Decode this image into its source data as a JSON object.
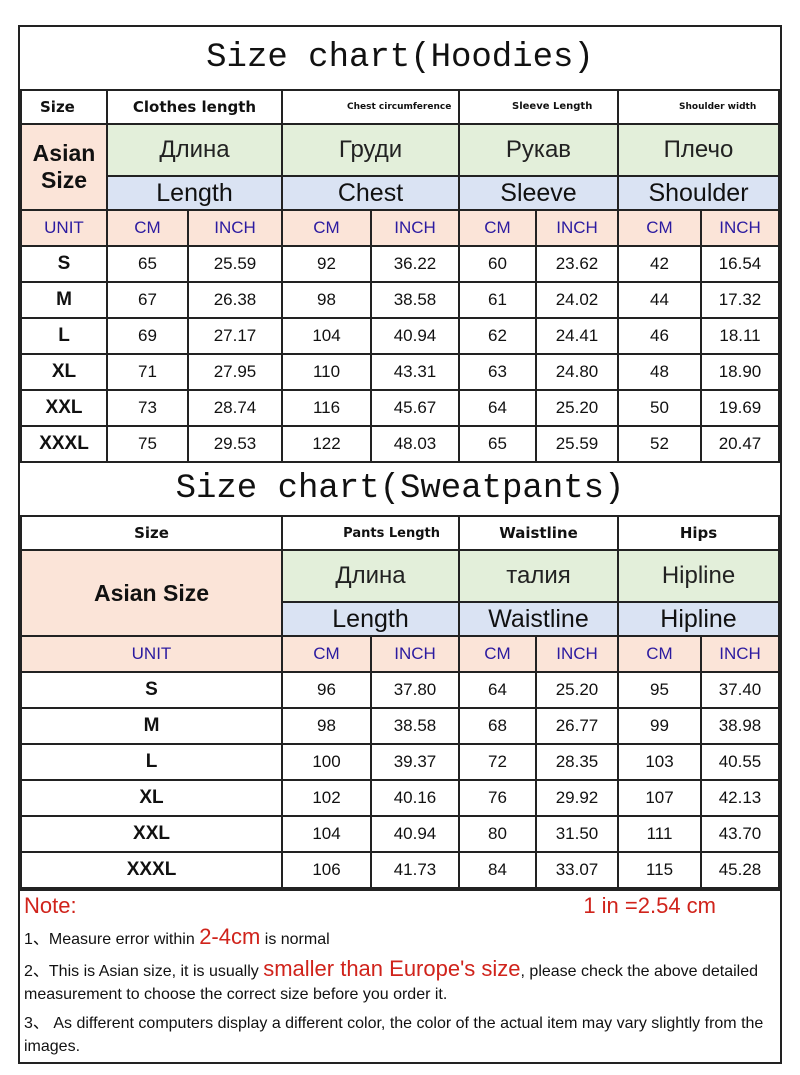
{
  "hoodies": {
    "title": "Size chart(Hoodies)",
    "header": {
      "size": "Size",
      "clothes_length": "Clothes length",
      "chest": "Chest circumference",
      "sleeve": "Sleeve Length",
      "shoulder": "Shoulder width"
    },
    "asian_size": "Asian Size",
    "russian": [
      "Длина",
      "Груди",
      "Рукав",
      "Плечо"
    ],
    "english": [
      "Length",
      "Chest",
      "Sleeve",
      "Shoulder"
    ],
    "units": [
      "UNIT",
      "CM",
      "INCH",
      "CM",
      "INCH",
      "CM",
      "INCH",
      "CM",
      "INCH"
    ],
    "rows": [
      [
        "S",
        "65",
        "25.59",
        "92",
        "36.22",
        "60",
        "23.62",
        "42",
        "16.54"
      ],
      [
        "M",
        "67",
        "26.38",
        "98",
        "38.58",
        "61",
        "24.02",
        "44",
        "17.32"
      ],
      [
        "L",
        "69",
        "27.17",
        "104",
        "40.94",
        "62",
        "24.41",
        "46",
        "18.11"
      ],
      [
        "XL",
        "71",
        "27.95",
        "110",
        "43.31",
        "63",
        "24.80",
        "48",
        "18.90"
      ],
      [
        "XXL",
        "73",
        "28.74",
        "116",
        "45.67",
        "64",
        "25.20",
        "50",
        "19.69"
      ],
      [
        "XXXL",
        "75",
        "29.53",
        "122",
        "48.03",
        "65",
        "25.59",
        "52",
        "20.47"
      ]
    ]
  },
  "pants": {
    "title": "Size chart(Sweatpants)",
    "header": {
      "size": "Size",
      "pants_length": "Pants Length",
      "waist": "Waistline",
      "hips": "Hips"
    },
    "asian_size": "Asian Size",
    "russian": [
      "Длина",
      "талия",
      "Hipline"
    ],
    "english": [
      "Length",
      "Waistline",
      "Hipline"
    ],
    "units": [
      "UNIT",
      "CM",
      "INCH",
      "CM",
      "INCH",
      "CM",
      "INCH"
    ],
    "rows": [
      [
        "S",
        "96",
        "37.80",
        "64",
        "25.20",
        "95",
        "37.40"
      ],
      [
        "M",
        "98",
        "38.58",
        "68",
        "26.77",
        "99",
        "38.98"
      ],
      [
        "L",
        "100",
        "39.37",
        "72",
        "28.35",
        "103",
        "40.55"
      ],
      [
        "XL",
        "102",
        "40.16",
        "76",
        "29.92",
        "107",
        "42.13"
      ],
      [
        "XXL",
        "104",
        "40.94",
        "80",
        "31.50",
        "111",
        "43.70"
      ],
      [
        "XXXL",
        "106",
        "41.73",
        "84",
        "33.07",
        "115",
        "45.28"
      ]
    ]
  },
  "notes": {
    "label": "Note:",
    "conversion": "1 in =2.54 cm",
    "n1_a": "1、Measure error within ",
    "n1_b": "2-4cm",
    "n1_c": " is normal",
    "n2_a": "2、This is Asian size, it is usually ",
    "n2_b": "smaller than Europe's size",
    "n2_c": ", please check the above detailed measurement to choose the correct size before you order it.",
    "n3": "3、 As different computers display a different color, the color of the actual item may vary slightly from the images."
  },
  "colors": {
    "unit_text": "#2b1aa0",
    "note_red": "#d0231b",
    "pink": "#fbe4d8",
    "green": "#e3efda",
    "blue": "#dae3f3"
  }
}
